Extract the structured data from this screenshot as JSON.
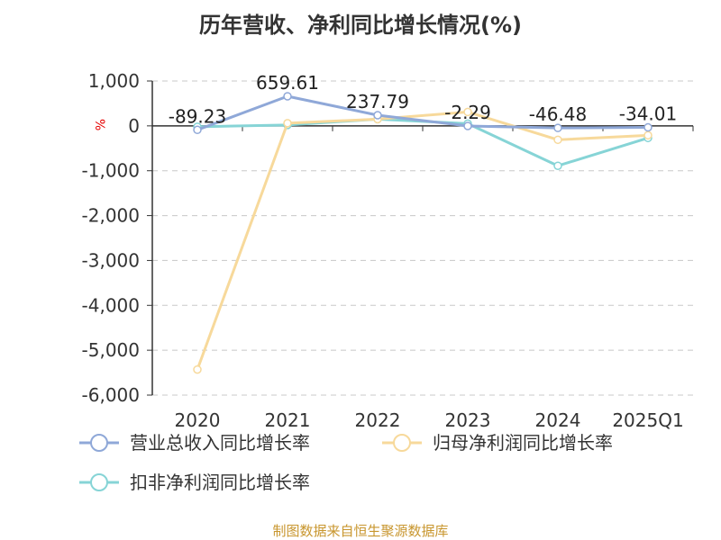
{
  "chart_data": {
    "type": "line",
    "title": "历年营收、净利同比增长情况(%)",
    "ylabel": "%",
    "categories": [
      "2020",
      "2021",
      "2022",
      "2023",
      "2024",
      "2025Q1"
    ],
    "ylim": [
      -6000,
      1000
    ],
    "yticks": [
      1000,
      0,
      -1000,
      -2000,
      -3000,
      -4000,
      -5000,
      -6000
    ],
    "ytick_labels": [
      "1,000",
      "0",
      "-1,000",
      "-2,000",
      "-3,000",
      "-4,000",
      "-5,000",
      "-6,000"
    ],
    "grid": true,
    "legend_position": "bottom",
    "series": [
      {
        "name": "营业总收入同比增长率",
        "color": "#8fa8d8",
        "values": [
          -89.23,
          659.61,
          237.79,
          -2.29,
          -46.48,
          -34.01
        ],
        "show_labels": true,
        "labels": [
          "-89.23",
          "659.61",
          "237.79",
          "-2.29",
          "-46.48",
          "-34.01"
        ]
      },
      {
        "name": "归母净利润同比增长率",
        "color": "#f7d99b",
        "values": [
          -5430,
          60,
          150,
          310,
          -310,
          -210
        ],
        "show_labels": false
      },
      {
        "name": "扣非净利润同比增长率",
        "color": "#86d4d6",
        "values": [
          -20,
          20,
          150,
          50,
          -890,
          -270
        ],
        "show_labels": false
      }
    ]
  },
  "footer": {
    "source": "制图数据来自恒生聚源数据库"
  }
}
